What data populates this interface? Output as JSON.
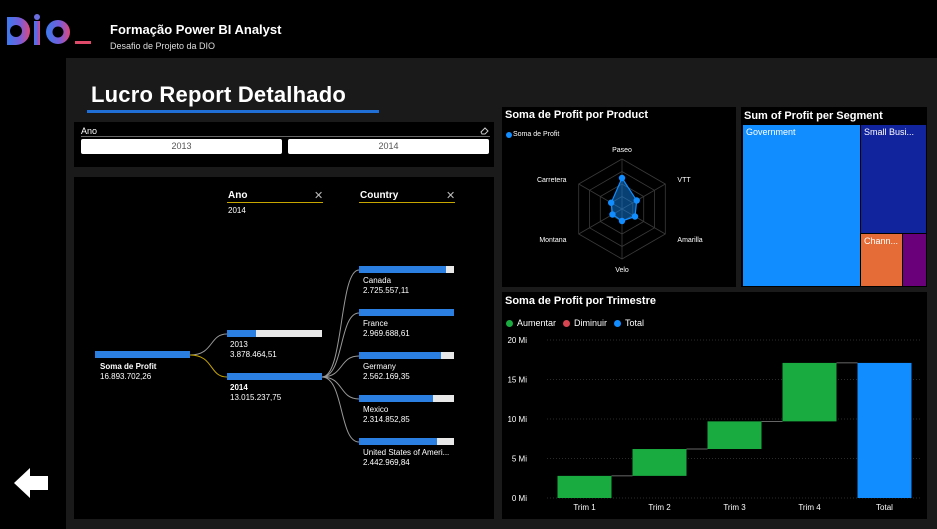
{
  "header": {
    "title": "Formação Power BI Analyst",
    "subtitle": "Desafio de Projeto da DIO"
  },
  "page": {
    "title": "Lucro Report Detalhado"
  },
  "slicer": {
    "label": "Ano",
    "options": [
      "2013",
      "2014"
    ],
    "eraser_icon": "eraser-icon"
  },
  "decomposition": {
    "root": {
      "label": "Soma de Profit",
      "value": "16.893.702,26",
      "fraction": 1.0
    },
    "level1": {
      "header": "Ano",
      "selected": "2014",
      "nodes": [
        {
          "label": "2013",
          "value": "3.878.464,51",
          "fraction": 0.3,
          "bold": false
        },
        {
          "label": "2014",
          "value": "13.015.237,75",
          "fraction": 1.0,
          "bold": true
        }
      ]
    },
    "level2": {
      "header": "Country",
      "nodes": [
        {
          "label": "Canada",
          "value": "2.725.557,11",
          "fraction": 0.92
        },
        {
          "label": "France",
          "value": "2.969.688,61",
          "fraction": 1.0
        },
        {
          "label": "Germany",
          "value": "2.562.169,35",
          "fraction": 0.86
        },
        {
          "label": "Mexico",
          "value": "2.314.852,85",
          "fraction": 0.78
        },
        {
          "label": "United States of Ameri...",
          "value": "2.442.969,84",
          "fraction": 0.82
        }
      ]
    },
    "close_icon": "close-icon"
  },
  "radar": {
    "title": "Soma de Profit por Product",
    "legend": "Soma de Profit",
    "color": "#118dff",
    "chart_data": {
      "type": "radar",
      "categories": [
        "Paseo",
        "VTT",
        "Amarilla",
        "Velo",
        "Montana",
        "Carretera"
      ],
      "values": [
        0.62,
        0.34,
        0.3,
        0.24,
        0.22,
        0.25
      ],
      "value_scale": "relative (0-1)"
    }
  },
  "treemap": {
    "title": "Sum of Profit per Segment",
    "cells": [
      {
        "label": "Government",
        "color": "#118dff"
      },
      {
        "label": "Small Busi...",
        "color": "#12239e"
      },
      {
        "label": "Chann...",
        "color": "#e66c37"
      },
      {
        "label": "",
        "color": "#6b007b"
      }
    ]
  },
  "waterfall": {
    "title": "Soma de Profit por Trimestre",
    "legend": [
      {
        "label": "Aumentar",
        "color": "#1aab40"
      },
      {
        "label": "Diminuir",
        "color": "#d64550"
      },
      {
        "label": "Total",
        "color": "#118dff"
      }
    ],
    "chart_data": {
      "type": "waterfall",
      "categories": [
        "Trim 1",
        "Trim 2",
        "Trim 3",
        "Trim 4",
        "Total"
      ],
      "increments": [
        2.8,
        3.4,
        3.5,
        7.4
      ],
      "total": 17.1,
      "yticks": [
        "0 Mi",
        "5 Mi",
        "10 Mi",
        "15 Mi",
        "20 Mi"
      ],
      "ylim": [
        0,
        20
      ],
      "unit": "Mi"
    }
  },
  "nav": {
    "back_icon": "back-arrow-icon"
  }
}
